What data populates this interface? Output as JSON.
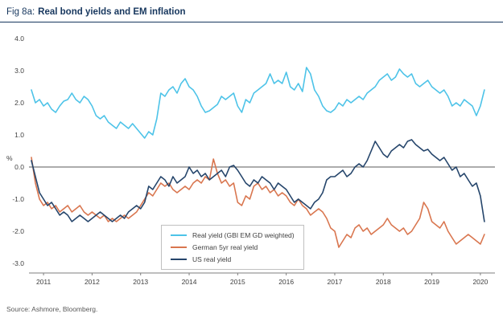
{
  "header": {
    "fig_label": "Fig 8a:",
    "title": "Real bond yields and EM inflation"
  },
  "footer": {
    "source": "Source: Ashmore, Bloomberg."
  },
  "colors": {
    "title": "#17375E",
    "axis_text": "#404040",
    "zero_line": "#595959",
    "axis_line": "#7f7f7f"
  },
  "chart_data": {
    "type": "line",
    "title": "Real bond yields and EM inflation",
    "xlabel": "",
    "ylabel": "%",
    "ylim": [
      -3.3,
      4.0
    ],
    "xlim": [
      2010.7,
      2020.3
    ],
    "grid": false,
    "legend_position": "inside-bottom-left",
    "yticks": [
      4.0,
      3.0,
      2.0,
      1.0,
      0.0,
      -1.0,
      -2.0,
      -3.0
    ],
    "ytick_labels": [
      "4.0",
      "3.0",
      "2.0",
      "1.0",
      "0.0",
      "-1.0",
      "-2.0",
      "-3.0"
    ],
    "xticks": [
      2011,
      2012,
      2013,
      2014,
      2015,
      2016,
      2017,
      2018,
      2019,
      2020
    ],
    "x_start": 2010.75,
    "x_step": "monthly",
    "series": [
      {
        "name": "Real yield (GBI EM GD weighted)",
        "color": "#4DC3E8",
        "values": [
          2.4,
          2.0,
          2.1,
          1.9,
          2.0,
          1.8,
          1.7,
          1.9,
          2.05,
          2.1,
          2.3,
          2.1,
          2.0,
          2.2,
          2.1,
          1.9,
          1.6,
          1.5,
          1.6,
          1.4,
          1.3,
          1.2,
          1.4,
          1.3,
          1.2,
          1.35,
          1.2,
          1.05,
          0.9,
          1.1,
          1.0,
          1.5,
          2.3,
          2.2,
          2.4,
          2.5,
          2.3,
          2.6,
          2.75,
          2.5,
          2.4,
          2.2,
          1.9,
          1.7,
          1.75,
          1.85,
          1.95,
          2.2,
          2.1,
          2.2,
          2.3,
          1.9,
          1.7,
          2.1,
          2.0,
          2.3,
          2.4,
          2.5,
          2.6,
          2.9,
          2.6,
          2.7,
          2.6,
          2.95,
          2.5,
          2.4,
          2.6,
          2.35,
          3.1,
          2.9,
          2.4,
          2.2,
          1.9,
          1.75,
          1.7,
          1.8,
          2.0,
          1.9,
          2.1,
          2.0,
          2.1,
          2.2,
          2.1,
          2.3,
          2.4,
          2.5,
          2.7,
          2.8,
          2.9,
          2.7,
          2.8,
          3.05,
          2.9,
          2.8,
          2.9,
          2.6,
          2.5,
          2.6,
          2.7,
          2.5,
          2.4,
          2.3,
          2.4,
          2.2,
          1.9,
          2.0,
          1.9,
          2.1,
          2.0,
          1.9,
          1.6,
          1.9,
          2.4
        ]
      },
      {
        "name": "German 5yr real yield",
        "color": "#D9764F",
        "values": [
          0.3,
          -0.5,
          -1.0,
          -1.2,
          -1.1,
          -1.3,
          -1.2,
          -1.4,
          -1.3,
          -1.2,
          -1.4,
          -1.3,
          -1.2,
          -1.4,
          -1.5,
          -1.4,
          -1.5,
          -1.6,
          -1.5,
          -1.7,
          -1.6,
          -1.7,
          -1.6,
          -1.5,
          -1.6,
          -1.5,
          -1.4,
          -1.2,
          -1.0,
          -0.8,
          -0.9,
          -0.7,
          -0.5,
          -0.6,
          -0.5,
          -0.7,
          -0.8,
          -0.7,
          -0.6,
          -0.7,
          -0.5,
          -0.4,
          -0.5,
          -0.3,
          -0.4,
          0.25,
          -0.2,
          -0.5,
          -0.4,
          -0.6,
          -0.5,
          -1.1,
          -1.2,
          -0.9,
          -1.0,
          -0.6,
          -0.5,
          -0.7,
          -0.6,
          -0.8,
          -0.7,
          -0.9,
          -0.8,
          -0.9,
          -1.1,
          -1.2,
          -1.0,
          -1.2,
          -1.3,
          -1.5,
          -1.4,
          -1.3,
          -1.4,
          -1.6,
          -1.9,
          -2.0,
          -2.5,
          -2.3,
          -2.1,
          -2.2,
          -1.9,
          -1.8,
          -2.0,
          -1.9,
          -2.1,
          -2.0,
          -1.9,
          -1.8,
          -1.6,
          -1.8,
          -1.9,
          -2.0,
          -1.9,
          -2.1,
          -2.0,
          -1.8,
          -1.6,
          -1.1,
          -1.3,
          -1.7,
          -1.8,
          -1.9,
          -1.7,
          -2.0,
          -2.2,
          -2.4,
          -2.3,
          -2.2,
          -2.1,
          -2.2,
          -2.3,
          -2.4,
          -2.1
        ]
      },
      {
        "name": "US real yield",
        "color": "#25456B",
        "values": [
          0.2,
          -0.3,
          -0.8,
          -1.0,
          -1.2,
          -1.1,
          -1.3,
          -1.5,
          -1.4,
          -1.5,
          -1.7,
          -1.6,
          -1.5,
          -1.6,
          -1.7,
          -1.6,
          -1.5,
          -1.4,
          -1.5,
          -1.6,
          -1.7,
          -1.6,
          -1.5,
          -1.6,
          -1.4,
          -1.3,
          -1.2,
          -1.3,
          -1.1,
          -0.6,
          -0.7,
          -0.5,
          -0.3,
          -0.4,
          -0.6,
          -0.3,
          -0.5,
          -0.4,
          -0.3,
          0.0,
          -0.2,
          -0.1,
          -0.3,
          -0.2,
          -0.4,
          -0.3,
          -0.2,
          -0.1,
          -0.3,
          0.0,
          0.05,
          -0.1,
          -0.3,
          -0.5,
          -0.6,
          -0.4,
          -0.5,
          -0.3,
          -0.4,
          -0.5,
          -0.7,
          -0.5,
          -0.6,
          -0.7,
          -0.9,
          -1.1,
          -1.0,
          -1.1,
          -1.2,
          -1.3,
          -1.1,
          -1.0,
          -0.8,
          -0.4,
          -0.3,
          -0.3,
          -0.2,
          -0.1,
          -0.3,
          -0.2,
          0.0,
          0.1,
          0.0,
          0.2,
          0.5,
          0.8,
          0.6,
          0.4,
          0.3,
          0.5,
          0.6,
          0.7,
          0.6,
          0.8,
          0.85,
          0.7,
          0.6,
          0.5,
          0.55,
          0.4,
          0.3,
          0.2,
          0.3,
          0.1,
          -0.1,
          0.0,
          -0.3,
          -0.2,
          -0.4,
          -0.6,
          -0.5,
          -0.9,
          -1.7
        ]
      }
    ]
  }
}
